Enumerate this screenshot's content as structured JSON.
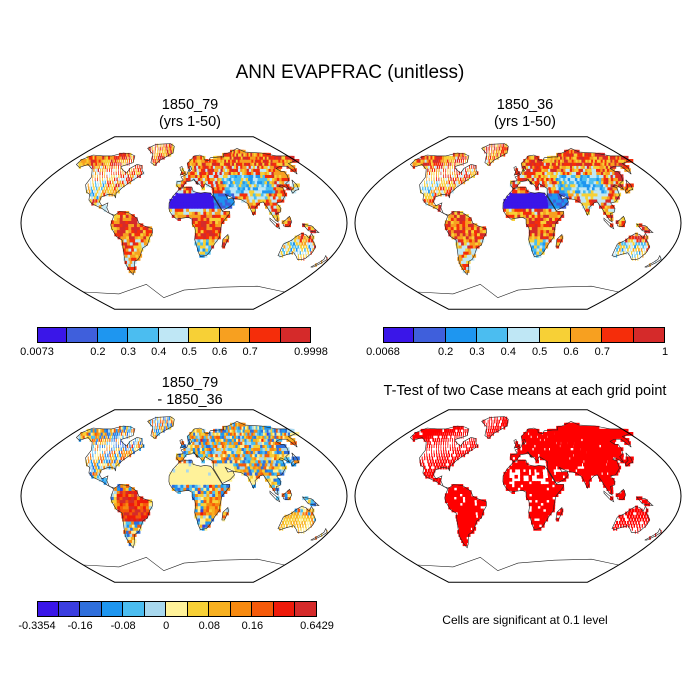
{
  "figure": {
    "title": "ANN EVAPFRAC (unitless)",
    "note": "Cells are significant at 0.1 level"
  },
  "panels": [
    {
      "id": "p1",
      "title_line1": "1850_79",
      "title_line2": "(yrs 1-50)"
    },
    {
      "id": "p2",
      "title_line1": "1850_36",
      "title_line2": "(yrs 1-50)"
    },
    {
      "id": "p3",
      "title_line1": "1850_79",
      "title_line2": "- 1850_36"
    },
    {
      "id": "p4",
      "title_line1": "T-Test of two Case means at each grid point",
      "title_line2": ""
    }
  ],
  "colorbars": [
    {
      "id": "cb1",
      "colors": [
        "#3a16e8",
        "#3f5fdc",
        "#1e96f0",
        "#4bbdf0",
        "#bfe7f5",
        "#f7d036",
        "#f7a020",
        "#f52d0a",
        "#d52a2a"
      ],
      "labels": [
        "0.0073",
        "0.2",
        "0.3",
        "0.4",
        "0.5",
        "0.6",
        "0.7",
        "0.9998"
      ],
      "label_at_boundary": [
        0,
        2,
        3,
        4,
        5,
        6,
        7,
        9
      ]
    },
    {
      "id": "cb2",
      "colors": [
        "#3a16e8",
        "#3f5fdc",
        "#1e96f0",
        "#4bbdf0",
        "#bfe7f5",
        "#f7d036",
        "#f7a020",
        "#f52d0a",
        "#d52a2a"
      ],
      "labels": [
        "0.0068",
        "0.2",
        "0.3",
        "0.4",
        "0.5",
        "0.6",
        "0.7",
        "1"
      ],
      "label_at_boundary": [
        0,
        2,
        3,
        4,
        5,
        6,
        7,
        9
      ]
    },
    {
      "id": "cb3",
      "colors": [
        "#3a16e8",
        "#3b3ee0",
        "#2f6fdc",
        "#1e96f0",
        "#4bbdf0",
        "#a8d8ee",
        "#fff29a",
        "#f7d036",
        "#f7b020",
        "#f78a10",
        "#f55a0a",
        "#ee1a0a",
        "#d52a2a"
      ],
      "labels": [
        "-0.3354",
        "-0.16",
        "-0.08",
        "0",
        "0.08",
        "0.16",
        "0.6429"
      ],
      "label_at_boundary": [
        0,
        2,
        4,
        6,
        8,
        10,
        13
      ]
    }
  ],
  "chart_data": [
    {
      "type": "map",
      "panel": "1850_79 (yrs 1-50)",
      "variable": "EVAPFRAC",
      "units": "unitless",
      "min": 0.0073,
      "max": 0.9998,
      "levels": [
        0.2,
        0.3,
        0.4,
        0.5,
        0.6,
        0.7
      ]
    },
    {
      "type": "map",
      "panel": "1850_36 (yrs 1-50)",
      "variable": "EVAPFRAC",
      "units": "unitless",
      "min": 0.0068,
      "max": 1,
      "levels": [
        0.2,
        0.3,
        0.4,
        0.5,
        0.6,
        0.7
      ]
    },
    {
      "type": "map",
      "panel": "1850_79 - 1850_36",
      "variable": "EVAPFRAC difference",
      "min": -0.3354,
      "max": 0.6429,
      "levels": [
        -0.16,
        -0.08,
        0,
        0.08,
        0.16
      ]
    },
    {
      "type": "map",
      "panel": "T-Test of two Case means at each grid point",
      "significance_level": 0.1
    }
  ]
}
